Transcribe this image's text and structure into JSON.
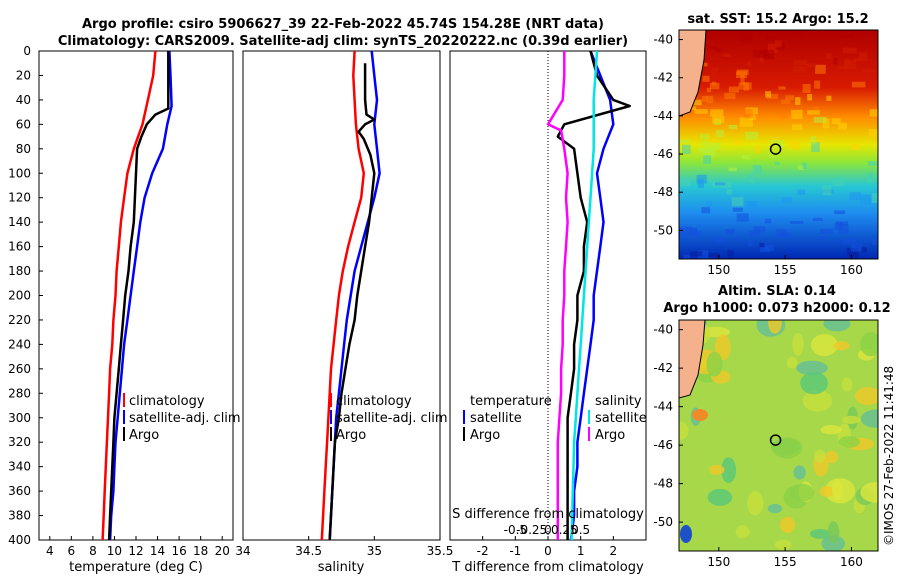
{
  "figure": {
    "title_line1": "Argo profile: csiro 5906627_39 22-Feb-2022 45.74S 154.28E (NRT data)",
    "title_line2": "Climatology: CARS2009. Satellite-adj clim: synTS_20220222.nc (0.39d earlier)",
    "credit": "©IMOS 27-Feb-2022 11:41:48"
  },
  "colors": {
    "climatology": "#ff0000",
    "satellite": "#0000ff",
    "argo": "#000000",
    "sat_salinity": "#00e5e5",
    "argo_salinity": "#ff00ff"
  },
  "chart_data": [
    {
      "id": "temperature",
      "type": "line",
      "xlabel": "temperature (deg C)",
      "xlim": [
        3,
        21
      ],
      "xticks": [
        "4",
        "6",
        "8",
        "10",
        "12",
        "14",
        "16",
        "18",
        "20"
      ],
      "ylim": [
        0,
        400
      ],
      "yticks": [
        "0",
        "20",
        "40",
        "60",
        "80",
        "100",
        "120",
        "140",
        "160",
        "180",
        "200",
        "220",
        "240",
        "260",
        "280",
        "300",
        "320",
        "340",
        "360",
        "380",
        "400"
      ],
      "legend": [
        "climatology",
        "satellite-adj. clim",
        "Argo"
      ],
      "series": [
        {
          "name": "climatology",
          "color": "#ff0000",
          "points": [
            [
              13.8,
              0
            ],
            [
              13.6,
              20
            ],
            [
              13.1,
              40
            ],
            [
              12.6,
              60
            ],
            [
              11.8,
              80
            ],
            [
              11.2,
              100
            ],
            [
              10.9,
              120
            ],
            [
              10.6,
              140
            ],
            [
              10.4,
              160
            ],
            [
              10.2,
              180
            ],
            [
              10.1,
              200
            ],
            [
              9.9,
              220
            ],
            [
              9.8,
              240
            ],
            [
              9.6,
              260
            ],
            [
              9.5,
              280
            ],
            [
              9.4,
              300
            ],
            [
              9.3,
              320
            ],
            [
              9.2,
              340
            ],
            [
              9.1,
              360
            ],
            [
              9.0,
              380
            ],
            [
              8.9,
              400
            ]
          ]
        },
        {
          "name": "satellite-adj. clim",
          "color": "#0000ff",
          "points": [
            [
              15.1,
              0
            ],
            [
              15.2,
              20
            ],
            [
              15.3,
              45
            ],
            [
              14.9,
              60
            ],
            [
              14.5,
              80
            ],
            [
              13.5,
              100
            ],
            [
              12.8,
              120
            ],
            [
              12.4,
              140
            ],
            [
              12.1,
              160
            ],
            [
              11.8,
              180
            ],
            [
              11.5,
              200
            ],
            [
              11.2,
              220
            ],
            [
              10.9,
              240
            ],
            [
              10.7,
              260
            ],
            [
              10.5,
              280
            ],
            [
              10.3,
              300
            ],
            [
              10.1,
              320
            ],
            [
              10.0,
              340
            ],
            [
              9.9,
              360
            ],
            [
              9.7,
              380
            ],
            [
              9.6,
              400
            ]
          ]
        },
        {
          "name": "Argo",
          "color": "#000000",
          "points": [
            [
              15.0,
              0
            ],
            [
              15.0,
              20
            ],
            [
              15.0,
              47
            ],
            [
              13.8,
              52
            ],
            [
              13.0,
              60
            ],
            [
              12.5,
              70
            ],
            [
              12.1,
              80
            ],
            [
              12.0,
              100
            ],
            [
              11.9,
              120
            ],
            [
              11.8,
              140
            ],
            [
              11.5,
              160
            ],
            [
              11.3,
              180
            ],
            [
              11.0,
              200
            ],
            [
              10.8,
              220
            ],
            [
              10.6,
              240
            ],
            [
              10.4,
              260
            ],
            [
              10.2,
              280
            ],
            [
              10.0,
              300
            ],
            [
              9.9,
              320
            ],
            [
              9.8,
              340
            ],
            [
              9.7,
              360
            ],
            [
              9.6,
              380
            ],
            [
              9.5,
              400
            ]
          ]
        }
      ]
    },
    {
      "id": "salinity",
      "type": "line",
      "xlabel": "salinity",
      "xlim": [
        34,
        35.5
      ],
      "xticks": [
        "34",
        "34.5",
        "35",
        "35.5"
      ],
      "ylim": [
        0,
        400
      ],
      "legend": [
        "climatology",
        "satellite-adj. clim",
        "Argo"
      ],
      "series": [
        {
          "name": "climatology",
          "color": "#ff0000",
          "points": [
            [
              34.85,
              0
            ],
            [
              34.84,
              20
            ],
            [
              34.85,
              40
            ],
            [
              34.86,
              60
            ],
            [
              34.88,
              80
            ],
            [
              34.92,
              100
            ],
            [
              34.9,
              120
            ],
            [
              34.85,
              140
            ],
            [
              34.8,
              160
            ],
            [
              34.76,
              180
            ],
            [
              34.73,
              200
            ],
            [
              34.71,
              220
            ],
            [
              34.69,
              240
            ],
            [
              34.67,
              260
            ],
            [
              34.66,
              280
            ],
            [
              34.65,
              300
            ],
            [
              34.64,
              320
            ],
            [
              34.63,
              340
            ],
            [
              34.62,
              360
            ],
            [
              34.61,
              380
            ],
            [
              34.6,
              400
            ]
          ]
        },
        {
          "name": "satellite-adj. clim",
          "color": "#0000ff",
          "points": [
            [
              34.98,
              0
            ],
            [
              35.0,
              20
            ],
            [
              35.02,
              40
            ],
            [
              35.0,
              60
            ],
            [
              35.02,
              80
            ],
            [
              35.04,
              100
            ],
            [
              35.0,
              120
            ],
            [
              34.95,
              140
            ],
            [
              34.9,
              160
            ],
            [
              34.85,
              180
            ],
            [
              34.82,
              200
            ],
            [
              34.79,
              220
            ],
            [
              34.77,
              240
            ],
            [
              34.75,
              260
            ],
            [
              34.73,
              280
            ],
            [
              34.71,
              300
            ],
            [
              34.7,
              320
            ],
            [
              34.69,
              340
            ],
            [
              34.68,
              360
            ],
            [
              34.67,
              380
            ],
            [
              34.66,
              400
            ]
          ]
        },
        {
          "name": "Argo",
          "color": "#000000",
          "points": [
            [
              34.93,
              10
            ],
            [
              34.93,
              40
            ],
            [
              34.94,
              52
            ],
            [
              35.0,
              56
            ],
            [
              34.93,
              60
            ],
            [
              34.88,
              66
            ],
            [
              34.92,
              72
            ],
            [
              34.97,
              85
            ],
            [
              35.0,
              100
            ],
            [
              34.98,
              120
            ],
            [
              34.96,
              140
            ],
            [
              34.93,
              160
            ],
            [
              34.9,
              180
            ],
            [
              34.87,
              200
            ],
            [
              34.85,
              220
            ],
            [
              34.81,
              240
            ],
            [
              34.78,
              260
            ],
            [
              34.75,
              280
            ],
            [
              34.73,
              300
            ],
            [
              34.7,
              320
            ],
            [
              34.69,
              340
            ],
            [
              34.68,
              360
            ],
            [
              34.67,
              380
            ],
            [
              34.66,
              400
            ]
          ]
        }
      ]
    },
    {
      "id": "difference",
      "type": "line",
      "xlabel": "T difference from climatology",
      "xlim": [
        -3,
        3.0
      ],
      "xticks": [
        "-2",
        "-1",
        "0",
        "1",
        "2"
      ],
      "s_axis_label": "S difference from climatology",
      "s_ticks": [
        "-0.5",
        "-0.25",
        "0",
        "0.25",
        "0.5"
      ],
      "ylim": [
        0,
        400
      ],
      "legend_temperature_title": "temperature",
      "legend_salinity_title": "salinity",
      "legend_entries": [
        "satellite",
        "Argo",
        "satellite",
        "Argo"
      ],
      "series": [
        {
          "name": "T satellite",
          "color": "#0000ff",
          "points": [
            [
              1.3,
              0
            ],
            [
              1.6,
              20
            ],
            [
              1.9,
              40
            ],
            [
              2.0,
              60
            ],
            [
              1.7,
              80
            ],
            [
              1.5,
              100
            ],
            [
              1.6,
              120
            ],
            [
              1.7,
              140
            ],
            [
              1.6,
              160
            ],
            [
              1.5,
              180
            ],
            [
              1.4,
              200
            ],
            [
              1.4,
              220
            ],
            [
              1.3,
              240
            ],
            [
              1.2,
              260
            ],
            [
              1.1,
              280
            ],
            [
              1.0,
              300
            ],
            [
              0.9,
              320
            ],
            [
              0.9,
              340
            ],
            [
              0.8,
              360
            ],
            [
              0.8,
              380
            ],
            [
              0.7,
              400
            ]
          ]
        },
        {
          "name": "T Argo",
          "color": "#000000",
          "points": [
            [
              1.3,
              0
            ],
            [
              1.5,
              20
            ],
            [
              2.0,
              40
            ],
            [
              2.5,
              45
            ],
            [
              0.5,
              60
            ],
            [
              0.3,
              70
            ],
            [
              0.8,
              80
            ],
            [
              0.9,
              100
            ],
            [
              1.0,
              120
            ],
            [
              1.2,
              140
            ],
            [
              1.1,
              160
            ],
            [
              1.1,
              180
            ],
            [
              0.9,
              200
            ],
            [
              0.9,
              220
            ],
            [
              0.8,
              240
            ],
            [
              0.8,
              260
            ],
            [
              0.7,
              280
            ],
            [
              0.6,
              300
            ],
            [
              0.6,
              320
            ],
            [
              0.6,
              340
            ],
            [
              0.6,
              360
            ],
            [
              0.6,
              380
            ],
            [
              0.6,
              400
            ]
          ]
        },
        {
          "name": "S satellite",
          "color": "#00e5e5",
          "points": [
            [
              1.5,
              0
            ],
            [
              1.45,
              20
            ],
            [
              1.4,
              40
            ],
            [
              1.4,
              60
            ],
            [
              1.4,
              80
            ],
            [
              1.35,
              100
            ],
            [
              1.3,
              120
            ],
            [
              1.25,
              140
            ],
            [
              1.2,
              160
            ],
            [
              1.15,
              180
            ],
            [
              1.1,
              200
            ],
            [
              1.05,
              220
            ],
            [
              1.0,
              240
            ],
            [
              0.95,
              260
            ],
            [
              0.9,
              280
            ],
            [
              0.85,
              300
            ],
            [
              0.8,
              320
            ],
            [
              0.78,
              340
            ],
            [
              0.76,
              360
            ],
            [
              0.74,
              380
            ],
            [
              0.72,
              400
            ]
          ]
        },
        {
          "name": "S Argo",
          "color": "#ff00ff",
          "points": [
            [
              0.5,
              0
            ],
            [
              0.5,
              20
            ],
            [
              0.45,
              40
            ],
            [
              0.0,
              60
            ],
            [
              0.4,
              65
            ],
            [
              0.5,
              80
            ],
            [
              0.6,
              100
            ],
            [
              0.55,
              120
            ],
            [
              0.6,
              140
            ],
            [
              0.55,
              160
            ],
            [
              0.5,
              180
            ],
            [
              0.5,
              200
            ],
            [
              0.45,
              220
            ],
            [
              0.45,
              240
            ],
            [
              0.4,
              260
            ],
            [
              0.4,
              280
            ],
            [
              0.35,
              300
            ],
            [
              0.3,
              320
            ],
            [
              0.3,
              340
            ],
            [
              0.3,
              360
            ],
            [
              0.3,
              380
            ],
            [
              0.3,
              400
            ]
          ]
        }
      ]
    },
    {
      "id": "sst_map",
      "type": "heatmap",
      "title": "sat. SST: 15.2 Argo: 15.2",
      "xlim": [
        147,
        162
      ],
      "ylim": [
        -51.5,
        -39.5
      ],
      "xticks": [
        "150",
        "155",
        "160"
      ],
      "yticks": [
        "-40",
        "-42",
        "-44",
        "-46",
        "-48",
        "-50"
      ],
      "marker": [
        154.28,
        -45.74
      ]
    },
    {
      "id": "sla_map",
      "type": "heatmap",
      "title_line1": "Altim. SLA: 0.14",
      "title_line2": "Argo h1000: 0.073 h2000: 0.12",
      "xlim": [
        147,
        162
      ],
      "ylim": [
        -51.5,
        -39.5
      ],
      "xticks": [
        "150",
        "155",
        "160"
      ],
      "yticks": [
        "-40",
        "-42",
        "-44",
        "-46",
        "-48",
        "-50"
      ],
      "marker": [
        154.28,
        -45.74
      ]
    }
  ]
}
